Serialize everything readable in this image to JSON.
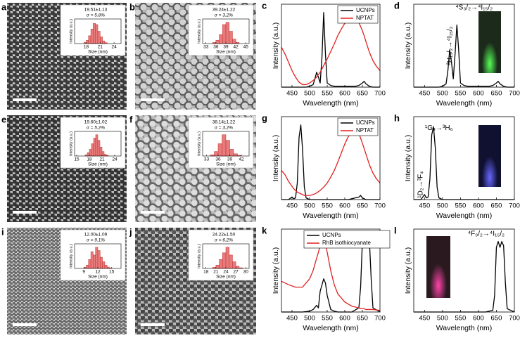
{
  "chart_data": [
    {
      "type": "histogram",
      "panel_label": "a",
      "title": "19.51±1.13",
      "subtitle": "σ = 5.8%",
      "xlabel": "Size (nm)",
      "ylabel": "Intensity (a.u.)",
      "bins": [
        17.5,
        18,
        18.5,
        19,
        19.5,
        20,
        20.5,
        21,
        21.5,
        22,
        22.5
      ],
      "values": [
        0.05,
        0.15,
        0.35,
        0.65,
        0.9,
        0.85,
        0.55,
        0.3,
        0.12,
        0.04
      ],
      "color": "#e87b7b",
      "xlim": [
        15.5,
        25.5
      ],
      "xticks": [
        18,
        21,
        24
      ],
      "ylim": [
        0,
        1.1
      ]
    },
    {
      "type": "histogram",
      "panel_label": "b",
      "title": "39.24±1.22",
      "subtitle": "σ = 3.2%",
      "xlabel": "Size (nm)",
      "ylabel": "Intensity (a.u.)",
      "bins": [
        35,
        36,
        37,
        38,
        39,
        40,
        41,
        42,
        43
      ],
      "values": [
        0.05,
        0.15,
        0.4,
        0.85,
        0.95,
        0.55,
        0.2,
        0.05
      ],
      "color": "#e87b7b",
      "xlim": [
        32,
        46
      ],
      "xticks": [
        33,
        36,
        39,
        42,
        45
      ],
      "ylim": [
        0,
        1.1
      ]
    },
    {
      "type": "line",
      "panel_label": "c",
      "xlabel": "Wavelength (nm)",
      "ylabel": "Intensity (a.u.)",
      "legend": "upper right",
      "x": [
        420,
        430,
        440,
        450,
        460,
        470,
        480,
        490,
        500,
        510,
        515,
        520,
        525,
        530,
        535,
        540,
        545,
        550,
        560,
        570,
        580,
        590,
        600,
        610,
        620,
        630,
        640,
        650,
        655,
        660,
        670,
        680,
        690,
        700
      ],
      "series": [
        {
          "name": "UCNPs",
          "color": "#000000",
          "values": [
            0,
            0,
            0,
            0,
            0,
            0,
            0,
            0,
            0.01,
            0.03,
            0.1,
            0.18,
            0.12,
            0.05,
            0.35,
            0.9,
            0.4,
            0.05,
            0.02,
            0.01,
            0.01,
            0.01,
            0.01,
            0.01,
            0.01,
            0.01,
            0.02,
            0.05,
            0.07,
            0.04,
            0.01,
            0,
            0,
            0
          ]
        },
        {
          "name": "NPTAT",
          "color": "#e02020",
          "values": [
            0.48,
            0.4,
            0.3,
            0.2,
            0.12,
            0.06,
            0.03,
            0.03,
            0.05,
            0.08,
            0.1,
            0.12,
            0.15,
            0.18,
            0.22,
            0.26,
            0.3,
            0.34,
            0.43,
            0.52,
            0.62,
            0.7,
            0.77,
            0.82,
            0.85,
            0.84,
            0.78,
            0.68,
            0.62,
            0.55,
            0.42,
            0.32,
            0.25,
            0.2
          ]
        }
      ],
      "xlim": [
        420,
        700
      ],
      "xticks": [
        450,
        500,
        550,
        600,
        650,
        700
      ],
      "ylim": [
        0,
        1.0
      ]
    },
    {
      "type": "line",
      "panel_label": "d",
      "xlabel": "Wavelength (nm)",
      "ylabel": "Intensity (a.u.)",
      "annotations": [
        "⁴S₃/₂→⁴I₁₅/₂",
        "²H₁₁/₂→⁴I₁₅/₂"
      ],
      "x": [
        420,
        430,
        440,
        450,
        460,
        470,
        480,
        490,
        500,
        510,
        515,
        520,
        525,
        530,
        535,
        540,
        545,
        550,
        560,
        570,
        580,
        590,
        600,
        610,
        620,
        630,
        640,
        650,
        655,
        660,
        670,
        680,
        690,
        700
      ],
      "values": [
        0,
        0,
        0,
        0,
        0,
        0,
        0,
        0,
        0.01,
        0.04,
        0.2,
        0.45,
        0.3,
        0.1,
        0.4,
        0.75,
        0.45,
        0.05,
        0.02,
        0.01,
        0.01,
        0.01,
        0.01,
        0.01,
        0.01,
        0.01,
        0.02,
        0.05,
        0.07,
        0.04,
        0.01,
        0,
        0,
        0
      ],
      "color": "#000000",
      "xlim": [
        420,
        700
      ],
      "xticks": [
        450,
        500,
        550,
        600,
        650,
        700
      ],
      "ylim": [
        0,
        1.0
      ]
    },
    {
      "type": "histogram",
      "panel_label": "e",
      "title": "19.60±1.02",
      "subtitle": "σ = 5.2%",
      "xlabel": "Size (nm)",
      "ylabel": "Intensity (a.u.)",
      "bins": [
        17,
        17.5,
        18,
        18.5,
        19,
        19.5,
        20,
        20.5,
        21,
        21.5,
        22,
        22.5
      ],
      "values": [
        0.05,
        0.15,
        0.3,
        0.55,
        0.8,
        0.95,
        0.7,
        0.4,
        0.2,
        0.08,
        0.03
      ],
      "color": "#e87b7b",
      "xlim": [
        14.5,
        25.5
      ],
      "xticks": [
        15,
        18,
        21,
        24
      ],
      "ylim": [
        0,
        1.1
      ]
    },
    {
      "type": "histogram",
      "panel_label": "f",
      "title": "38.14±1.22",
      "subtitle": "σ = 3.2%",
      "xlabel": "Size (nm)",
      "ylabel": "Intensity (a.u.)",
      "bins": [
        34,
        35,
        36,
        37,
        38,
        39,
        40,
        41,
        42
      ],
      "values": [
        0.05,
        0.2,
        0.55,
        0.95,
        0.7,
        0.3,
        0.1,
        0.03
      ],
      "color": "#e87b7b",
      "xlim": [
        32,
        44
      ],
      "xticks": [
        33,
        36,
        39,
        42
      ],
      "ylim": [
        0,
        1.1
      ]
    },
    {
      "type": "line",
      "panel_label": "g",
      "xlabel": "Wavelength (nm)",
      "ylabel": "Intensity (a.u.)",
      "legend": "upper right",
      "x": [
        420,
        430,
        440,
        450,
        455,
        460,
        465,
        470,
        475,
        480,
        485,
        490,
        500,
        510,
        520,
        530,
        540,
        550,
        560,
        570,
        580,
        590,
        600,
        610,
        620,
        630,
        640,
        645,
        650,
        660,
        670,
        680,
        690,
        700
      ],
      "series": [
        {
          "name": "UCNPs",
          "color": "#000000",
          "values": [
            0,
            0,
            0,
            0.03,
            0.01,
            0.02,
            0.2,
            0.75,
            0.9,
            0.6,
            0.15,
            0.02,
            0,
            0,
            0,
            0,
            0,
            0,
            0,
            0,
            0,
            0,
            0,
            0,
            0.01,
            0.02,
            0.03,
            0.05,
            0.02,
            0,
            0,
            0,
            0,
            0
          ]
        },
        {
          "name": "NPTAT",
          "color": "#e02020",
          "values": [
            0.35,
            0.3,
            0.22,
            0.16,
            0.13,
            0.11,
            0.09,
            0.08,
            0.07,
            0.06,
            0.05,
            0.05,
            0.05,
            0.06,
            0.08,
            0.11,
            0.15,
            0.2,
            0.27,
            0.35,
            0.45,
            0.56,
            0.67,
            0.76,
            0.82,
            0.84,
            0.8,
            0.74,
            0.68,
            0.55,
            0.42,
            0.32,
            0.25,
            0.2
          ]
        }
      ],
      "xlim": [
        420,
        700
      ],
      "xticks": [
        450,
        500,
        550,
        600,
        650,
        700
      ],
      "ylim": [
        0,
        1.0
      ]
    },
    {
      "type": "line",
      "panel_label": "h",
      "xlabel": "Wavelength (nm)",
      "ylabel": "Intensity (a.u.)",
      "annotations": [
        "¹G₄→³H₆",
        "¹D₂→³F₄"
      ],
      "x": [
        420,
        430,
        440,
        450,
        455,
        460,
        465,
        470,
        475,
        480,
        485,
        490,
        500,
        510,
        520,
        530,
        540,
        550,
        560,
        570,
        580,
        590,
        600,
        610,
        620,
        630,
        640,
        645,
        650,
        660,
        670,
        680,
        690,
        700
      ],
      "values": [
        0,
        0,
        0,
        0.06,
        0.02,
        0.03,
        0.25,
        0.78,
        0.88,
        0.62,
        0.15,
        0.02,
        0,
        0,
        0,
        0,
        0,
        0,
        0,
        0,
        0,
        0,
        0,
        0,
        0,
        0,
        0,
        0,
        0,
        0,
        0,
        0,
        0,
        0
      ],
      "color": "#000000",
      "xlim": [
        420,
        700
      ],
      "xticks": [
        450,
        500,
        550,
        600,
        650,
        700
      ],
      "ylim": [
        0,
        1.0
      ]
    },
    {
      "type": "histogram",
      "panel_label": "i",
      "title": "12.00±1.09",
      "subtitle": "σ = 9.1%",
      "xlabel": "Size (nm)",
      "ylabel": "Intensity (a.u.)",
      "bins": [
        9,
        9.5,
        10,
        10.5,
        11,
        11.5,
        12,
        12.5,
        13,
        13.5,
        14,
        14.5,
        15
      ],
      "values": [
        0.05,
        0.15,
        0.4,
        0.75,
        0.6,
        0.95,
        0.8,
        0.5,
        0.3,
        0.15,
        0.06,
        0.02
      ],
      "color": "#e87b7b",
      "xlim": [
        7,
        17
      ],
      "xticks": [
        9,
        12,
        15
      ],
      "ylim": [
        0,
        1.1
      ]
    },
    {
      "type": "histogram",
      "panel_label": "j",
      "title": "24.22±1.50",
      "subtitle": "σ = 6.2%",
      "xlabel": "Size (nm)",
      "ylabel": "Intensity (a.u.)",
      "bins": [
        20,
        21,
        22,
        23,
        24,
        25,
        26,
        27,
        28,
        29
      ],
      "values": [
        0.05,
        0.15,
        0.4,
        0.7,
        0.95,
        0.6,
        0.3,
        0.1,
        0.03
      ],
      "color": "#e87b7b",
      "xlim": [
        17,
        31
      ],
      "xticks": [
        18,
        21,
        24,
        27,
        30
      ],
      "ylim": [
        0,
        1.1
      ]
    },
    {
      "type": "line",
      "panel_label": "k",
      "xlabel": "Wavelength (nm)",
      "ylabel": "Intensity (a.u.)",
      "legend": "upper left",
      "x": [
        420,
        440,
        460,
        480,
        500,
        510,
        520,
        525,
        530,
        540,
        545,
        550,
        560,
        570,
        580,
        600,
        620,
        640,
        645,
        650,
        655,
        660,
        665,
        670,
        675,
        680,
        700
      ],
      "series": [
        {
          "name": "UCNPs",
          "color": "#000000",
          "values": [
            0,
            0,
            0,
            0,
            0.01,
            0.03,
            0.08,
            0.05,
            0.25,
            0.4,
            0.35,
            0.2,
            0.03,
            0.01,
            0,
            0,
            0,
            0.05,
            0.3,
            0.85,
            0.9,
            0.82,
            0.9,
            0.86,
            0.4,
            0.05,
            0
          ]
        },
        {
          "name": "RhB isothiocyanate",
          "color": "#e02020",
          "values": [
            0.37,
            0.33,
            0.3,
            0.3,
            0.4,
            0.5,
            0.65,
            0.72,
            0.8,
            0.85,
            0.82,
            0.72,
            0.5,
            0.33,
            0.22,
            0.12,
            0.07,
            0.05,
            0.04,
            0.04,
            0.04,
            0.03,
            0.03,
            0.03,
            0.03,
            0.03,
            0.02
          ]
        }
      ],
      "xlim": [
        420,
        700
      ],
      "xticks": [
        450,
        500,
        550,
        600,
        650,
        700
      ],
      "ylim": [
        0,
        1.0
      ]
    },
    {
      "type": "line",
      "panel_label": "l",
      "xlabel": "Wavelength (nm)",
      "ylabel": "Intensity (a.u.)",
      "annotations": [
        "⁴F₉/₂→⁴I₁₅/₂"
      ],
      "x": [
        420,
        440,
        460,
        480,
        500,
        510,
        520,
        525,
        530,
        540,
        545,
        550,
        560,
        570,
        580,
        600,
        620,
        640,
        645,
        650,
        655,
        660,
        665,
        670,
        675,
        680,
        700
      ],
      "values": [
        0,
        0,
        0,
        0,
        0,
        0,
        0,
        0,
        0,
        0,
        0,
        0,
        0,
        0,
        0,
        0,
        0,
        0.02,
        0.2,
        0.78,
        0.85,
        0.78,
        0.85,
        0.8,
        0.35,
        0.04,
        0
      ],
      "color": "#000000",
      "xlim": [
        420,
        700
      ],
      "xticks": [
        450,
        500,
        550,
        600,
        650,
        700
      ],
      "ylim": [
        0,
        1.0
      ]
    }
  ]
}
